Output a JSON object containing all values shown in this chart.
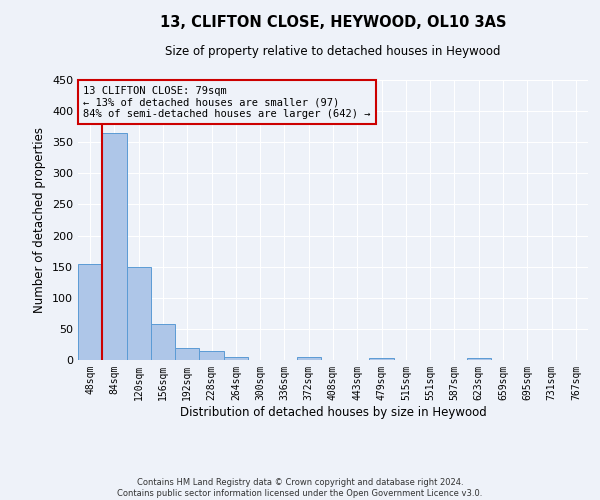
{
  "title": "13, CLIFTON CLOSE, HEYWOOD, OL10 3AS",
  "subtitle": "Size of property relative to detached houses in Heywood",
  "xlabel": "Distribution of detached houses by size in Heywood",
  "ylabel": "Number of detached properties",
  "bar_labels": [
    "48sqm",
    "84sqm",
    "120sqm",
    "156sqm",
    "192sqm",
    "228sqm",
    "264sqm",
    "300sqm",
    "336sqm",
    "372sqm",
    "408sqm",
    "443sqm",
    "479sqm",
    "515sqm",
    "551sqm",
    "587sqm",
    "623sqm",
    "659sqm",
    "695sqm",
    "731sqm",
    "767sqm"
  ],
  "bar_values": [
    155,
    365,
    150,
    58,
    20,
    14,
    5,
    0,
    0,
    5,
    0,
    0,
    4,
    0,
    0,
    0,
    3,
    0,
    0,
    0,
    0
  ],
  "bar_color": "#aec6e8",
  "bar_edge_color": "#5b9bd5",
  "ylim": [
    0,
    450
  ],
  "yticks": [
    0,
    50,
    100,
    150,
    200,
    250,
    300,
    350,
    400,
    450
  ],
  "property_line_x": 0.5,
  "annotation_line1": "13 CLIFTON CLOSE: 79sqm",
  "annotation_line2": "← 13% of detached houses are smaller (97)",
  "annotation_line3": "84% of semi-detached houses are larger (642) →",
  "annotation_box_color": "#cc0000",
  "vline_color": "#cc0000",
  "footer_line1": "Contains HM Land Registry data © Crown copyright and database right 2024.",
  "footer_line2": "Contains public sector information licensed under the Open Government Licence v3.0.",
  "background_color": "#eef2f9",
  "grid_color": "#ffffff"
}
